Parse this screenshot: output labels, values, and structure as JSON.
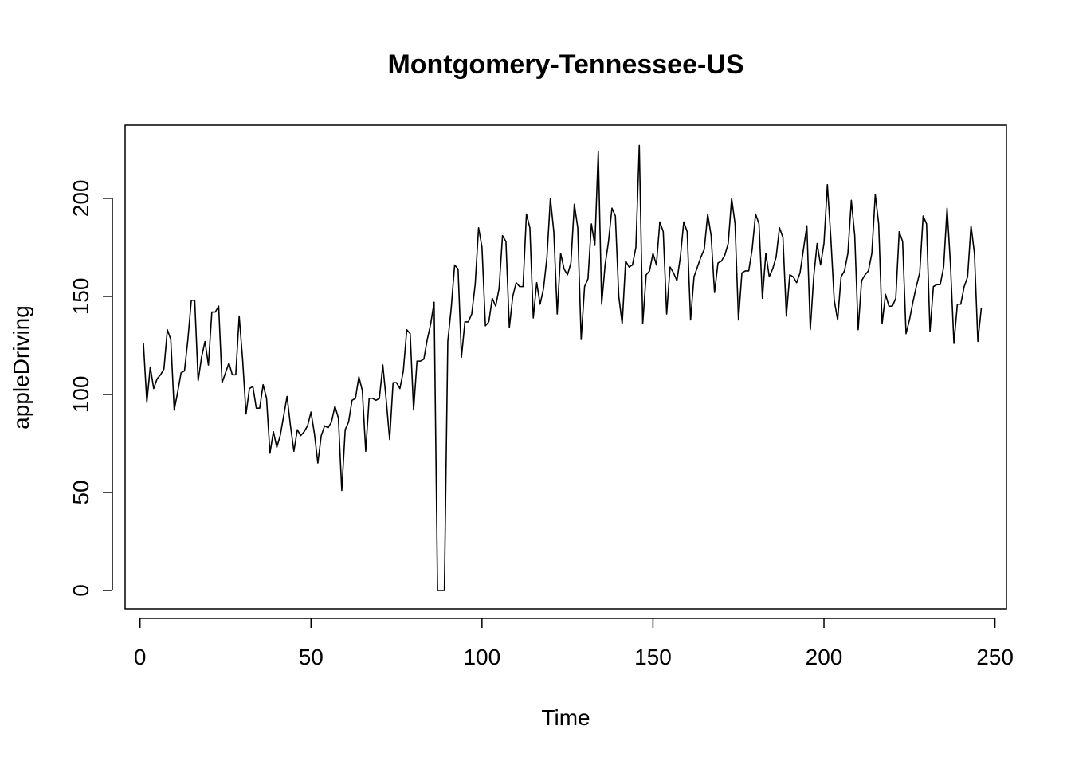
{
  "chart_data": {
    "type": "line",
    "title": "Montgomery-Tennessee-US",
    "xlabel": "Time",
    "ylabel": "appleDriving",
    "xlim": [
      1,
      248
    ],
    "ylim": [
      0,
      228
    ],
    "grid": false,
    "legend": "none",
    "line_color": "#000000",
    "x_ticks": [
      0,
      50,
      100,
      150,
      200,
      250
    ],
    "y_ticks": [
      0,
      50,
      100,
      150,
      200
    ],
    "x_tick_labels": [
      "0",
      "50",
      "100",
      "150",
      "200",
      "250"
    ],
    "y_tick_labels": [
      "0",
      "50",
      "100",
      "150",
      "200"
    ],
    "series": [
      {
        "values": [
          126,
          96,
          114,
          103,
          108,
          110,
          113,
          133,
          128,
          92,
          101,
          111,
          112,
          128,
          148,
          148,
          107,
          119,
          127,
          115,
          142,
          142,
          145,
          106,
          111,
          116,
          110,
          110,
          140,
          118,
          90,
          103,
          104,
          93,
          93,
          105,
          98,
          70,
          81,
          73,
          79,
          89,
          99,
          84,
          71,
          82,
          79,
          81,
          84,
          91,
          80,
          65,
          79,
          84,
          83,
          86,
          94,
          88,
          51,
          82,
          86,
          97,
          98,
          109,
          102,
          71,
          98,
          98,
          97,
          98,
          115,
          97,
          77,
          106,
          106,
          103,
          112,
          133,
          131,
          92,
          117,
          117,
          118,
          128,
          136,
          147,
          0,
          0,
          0,
          127,
          144,
          166,
          164,
          119,
          137,
          137,
          141,
          156,
          185,
          175,
          135,
          137,
          149,
          145,
          154,
          181,
          178,
          134,
          150,
          157,
          155,
          155,
          192,
          185,
          139,
          157,
          146,
          154,
          170,
          200,
          183,
          141,
          172,
          164,
          161,
          167,
          197,
          185,
          128,
          155,
          159,
          187,
          176,
          224,
          146,
          166,
          178,
          195,
          191,
          150,
          136,
          168,
          165,
          166,
          175,
          227,
          136,
          161,
          163,
          172,
          166,
          188,
          183,
          141,
          165,
          162,
          158,
          170,
          188,
          183,
          138,
          160,
          165,
          170,
          174,
          192,
          181,
          152,
          167,
          168,
          171,
          177,
          200,
          187,
          138,
          162,
          163,
          163,
          174,
          192,
          187,
          149,
          172,
          160,
          164,
          170,
          185,
          180,
          140,
          161,
          160,
          157,
          162,
          174,
          186,
          133,
          160,
          177,
          166,
          177,
          207,
          180,
          148,
          138,
          160,
          163,
          172,
          199,
          181,
          133,
          158,
          161,
          163,
          172,
          202,
          187,
          136,
          151,
          145,
          145,
          149,
          183,
          178,
          131,
          138,
          147,
          155,
          162,
          191,
          187,
          132,
          155,
          156,
          156,
          165,
          195,
          166,
          126,
          146,
          146,
          155,
          160,
          186,
          172,
          127,
          144
        ]
      }
    ]
  }
}
